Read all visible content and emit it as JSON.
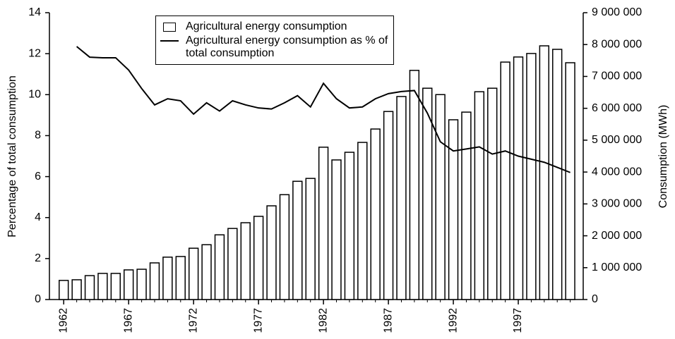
{
  "chart_data": {
    "type": "bar-line",
    "y_label": "Percentage of total consumption",
    "y2_label": "Consumption (MWh)",
    "x": [
      1962,
      1963,
      1964,
      1965,
      1966,
      1967,
      1968,
      1969,
      1970,
      1971,
      1972,
      1973,
      1974,
      1975,
      1976,
      1977,
      1978,
      1979,
      1980,
      1981,
      1982,
      1983,
      1984,
      1985,
      1986,
      1987,
      1988,
      1989,
      1990,
      1991,
      1992,
      1993,
      1994,
      1995,
      1996,
      1997,
      1998,
      1999,
      2000,
      2001
    ],
    "xlim": [
      1960.9,
      2002
    ],
    "xticks": [
      1962,
      1967,
      1972,
      1977,
      1982,
      1987,
      1992,
      1997
    ],
    "ylim": [
      0,
      14
    ],
    "yticks": [
      0,
      2,
      4,
      6,
      8,
      10,
      12,
      14
    ],
    "y2lim": [
      0,
      9000000
    ],
    "y2ticks": [
      0,
      {
        "value": 1000000,
        "label": "1 000 000"
      },
      {
        "value": 2000000,
        "label": "2 000 000"
      },
      {
        "value": 3000000,
        "label": "3 000 000"
      },
      {
        "value": 4000000,
        "label": "4 000 000"
      },
      {
        "value": 5000000,
        "label": "5 000 000"
      },
      {
        "value": 6000000,
        "label": "6 000 000"
      },
      {
        "value": 7000000,
        "label": "7 000 000"
      },
      {
        "value": 8000000,
        "label": "8 000 000"
      },
      {
        "value": 9000000,
        "label": "9 000 000"
      }
    ],
    "series": [
      {
        "name": "Agricultural energy consumption",
        "type": "bar",
        "axis": "y2",
        "color": "#ffffff",
        "stroke": "#000000",
        "values": [
          600000,
          620000,
          750000,
          820000,
          820000,
          930000,
          950000,
          1150000,
          1330000,
          1350000,
          1610000,
          1720000,
          2030000,
          2230000,
          2410000,
          2610000,
          2940000,
          3290000,
          3710000,
          3800000,
          4780000,
          4380000,
          4620000,
          4930000,
          5350000,
          5900000,
          6370000,
          7190000,
          6630000,
          6430000,
          5640000,
          5880000,
          6520000,
          6630000,
          7450000,
          7610000,
          7720000,
          7960000,
          7850000,
          7430000
        ]
      },
      {
        "name": "Agricultural energy consumption as % of total consumption",
        "type": "line",
        "axis": "y",
        "color": "#000000",
        "values": [
          null,
          12.35,
          11.83,
          11.8,
          11.8,
          11.2,
          10.3,
          9.5,
          9.8,
          9.7,
          9.05,
          9.6,
          9.2,
          9.7,
          9.5,
          9.35,
          9.3,
          9.6,
          9.95,
          9.4,
          10.55,
          9.8,
          9.35,
          9.4,
          9.8,
          10.05,
          10.15,
          10.2,
          9.1,
          7.7,
          7.25,
          7.35,
          7.45,
          7.1,
          7.25,
          7.0,
          6.85,
          6.7,
          6.45,
          6.2
        ]
      }
    ]
  }
}
